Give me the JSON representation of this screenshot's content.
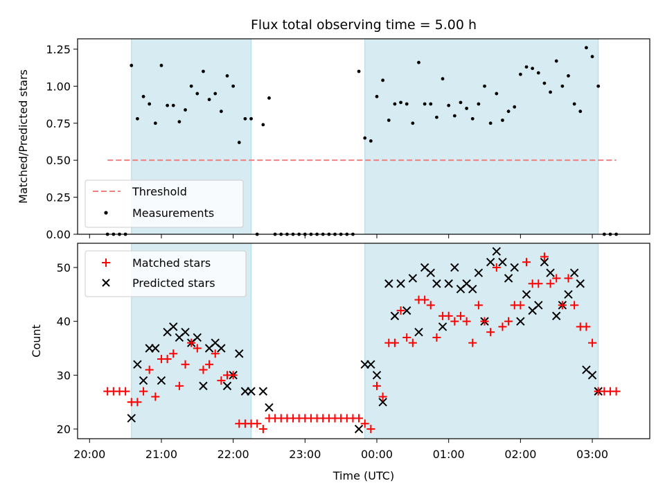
{
  "chart_data": [
    {
      "type": "scatter",
      "title": "Flux total observing time = 5.00 h",
      "ylabel": "Matched/Predicted stars",
      "xlabel": "",
      "ylim": [
        0,
        1.32
      ],
      "yticks": [
        "0.00",
        "0.25",
        "0.50",
        "0.75",
        "1.00",
        "1.25"
      ],
      "ytick_values": [
        0,
        0.25,
        0.5,
        0.75,
        1.0,
        1.25
      ],
      "threshold": {
        "name": "Threshold",
        "value": 0.5,
        "x_start": "20:15",
        "x_end": "03:20",
        "color": "#f08080"
      },
      "legend": {
        "placement": "lower-left",
        "entries": [
          "Threshold",
          "Measurements"
        ]
      },
      "series": [
        {
          "name": "Measurements",
          "color": "#000000",
          "x": [
            "20:15",
            "20:20",
            "20:25",
            "20:30",
            "20:35",
            "20:40",
            "20:45",
            "20:50",
            "20:55",
            "21:00",
            "21:05",
            "21:10",
            "21:15",
            "21:20",
            "21:25",
            "21:30",
            "21:35",
            "21:40",
            "21:45",
            "21:50",
            "21:55",
            "22:00",
            "22:05",
            "22:10",
            "22:15",
            "22:20",
            "22:25",
            "22:30",
            "22:35",
            "22:40",
            "22:45",
            "22:50",
            "22:55",
            "23:00",
            "23:05",
            "23:10",
            "23:15",
            "23:20",
            "23:25",
            "23:30",
            "23:35",
            "23:40",
            "23:45",
            "23:50",
            "23:55",
            "00:00",
            "00:05",
            "00:10",
            "00:15",
            "00:20",
            "00:25",
            "00:30",
            "00:35",
            "00:40",
            "00:45",
            "00:50",
            "00:55",
            "01:00",
            "01:05",
            "01:10",
            "01:15",
            "01:20",
            "01:25",
            "01:30",
            "01:35",
            "01:40",
            "01:45",
            "01:50",
            "01:55",
            "02:00",
            "02:05",
            "02:10",
            "02:15",
            "02:20",
            "02:25",
            "02:30",
            "02:35",
            "02:40",
            "02:45",
            "02:50",
            "02:55",
            "03:00",
            "03:05",
            "03:10",
            "03:15",
            "03:20"
          ],
          "y": [
            0,
            0,
            0,
            0,
            1.14,
            0.78,
            0.93,
            0.88,
            0.75,
            1.14,
            0.87,
            0.87,
            0.76,
            0.84,
            1.0,
            0.95,
            1.1,
            0.91,
            0.95,
            0.83,
            1.07,
            1.0,
            0.62,
            0.78,
            0.78,
            0,
            0.74,
            0.92,
            0,
            0,
            0,
            0,
            0,
            0,
            0,
            0,
            0,
            0,
            0,
            0,
            0,
            0,
            1.1,
            0.65,
            0.63,
            0.93,
            1.04,
            0.77,
            0.88,
            0.89,
            0.88,
            0.75,
            1.16,
            0.88,
            0.88,
            0.79,
            1.05,
            0.87,
            0.8,
            0.89,
            0.85,
            0.78,
            0.88,
            1.0,
            0.75,
            0.95,
            0.77,
            0.83,
            0.86,
            1.08,
            1.13,
            1.12,
            1.09,
            1.02,
            0.96,
            1.17,
            1.0,
            1.07,
            0.88,
            0.83,
            1.26,
            1.2,
            1.0,
            0,
            0,
            0
          ]
        }
      ]
    },
    {
      "type": "scatter",
      "title": "",
      "ylabel": "Count",
      "xlabel": "Time (UTC)",
      "ylim": [
        18.2,
        54.5
      ],
      "yticks": [
        "20",
        "30",
        "40",
        "50"
      ],
      "ytick_values": [
        20,
        30,
        40,
        50
      ],
      "xticks": [
        "20:00",
        "21:00",
        "22:00",
        "23:00",
        "00:00",
        "01:00",
        "02:00",
        "03:00"
      ],
      "legend": {
        "placement": "top-left",
        "entries": [
          "Matched stars",
          "Predicted stars"
        ]
      },
      "series": [
        {
          "name": "Matched stars",
          "color": "#ff0000",
          "marker": "+",
          "x": [
            "20:15",
            "20:20",
            "20:25",
            "20:30",
            "20:35",
            "20:40",
            "20:45",
            "20:50",
            "20:55",
            "21:00",
            "21:05",
            "21:10",
            "21:15",
            "21:20",
            "21:25",
            "21:30",
            "21:35",
            "21:40",
            "21:45",
            "21:50",
            "21:55",
            "22:00",
            "22:05",
            "22:10",
            "22:15",
            "22:20",
            "22:25",
            "22:30",
            "22:35",
            "22:40",
            "22:45",
            "22:50",
            "22:55",
            "23:00",
            "23:05",
            "23:10",
            "23:15",
            "23:20",
            "23:25",
            "23:30",
            "23:35",
            "23:40",
            "23:45",
            "23:50",
            "23:55",
            "00:00",
            "00:05",
            "00:10",
            "00:15",
            "00:20",
            "00:25",
            "00:30",
            "00:35",
            "00:40",
            "00:45",
            "00:50",
            "00:55",
            "01:00",
            "01:05",
            "01:10",
            "01:15",
            "01:20",
            "01:25",
            "01:30",
            "01:35",
            "01:40",
            "01:45",
            "01:50",
            "01:55",
            "02:00",
            "02:05",
            "02:10",
            "02:15",
            "02:20",
            "02:25",
            "02:30",
            "02:35",
            "02:40",
            "02:45",
            "02:50",
            "02:55",
            "03:00",
            "03:05",
            "03:10",
            "03:15",
            "03:20"
          ],
          "y": [
            27,
            27,
            27,
            27,
            25,
            25,
            27,
            31,
            26,
            33,
            33,
            34,
            28,
            32,
            36,
            35,
            31,
            32,
            34,
            29,
            30,
            30,
            21,
            21,
            21,
            21,
            20,
            22,
            22,
            22,
            22,
            22,
            22,
            22,
            22,
            22,
            22,
            22,
            22,
            22,
            22,
            22,
            22,
            21,
            20,
            28,
            26,
            36,
            36,
            42,
            37,
            36,
            44,
            44,
            43,
            37,
            41,
            41,
            40,
            41,
            40,
            36,
            43,
            40,
            38,
            50,
            39,
            40,
            43,
            43,
            51,
            47,
            47,
            52,
            47,
            48,
            43,
            48,
            43,
            39,
            39,
            36,
            27,
            27,
            27,
            27
          ]
        },
        {
          "name": "Predicted stars",
          "color": "#000000",
          "marker": "x",
          "x": [
            "20:35",
            "20:40",
            "20:45",
            "20:50",
            "20:55",
            "21:00",
            "21:05",
            "21:10",
            "21:15",
            "21:20",
            "21:25",
            "21:30",
            "21:35",
            "21:40",
            "21:45",
            "21:50",
            "21:55",
            "22:00",
            "22:05",
            "22:10",
            "22:15",
            "22:25",
            "22:30",
            "23:45",
            "23:50",
            "23:55",
            "00:00",
            "00:05",
            "00:10",
            "00:15",
            "00:20",
            "00:25",
            "00:30",
            "00:35",
            "00:40",
            "00:45",
            "00:50",
            "00:55",
            "01:00",
            "01:05",
            "01:10",
            "01:15",
            "01:20",
            "01:25",
            "01:30",
            "01:35",
            "01:40",
            "01:45",
            "01:50",
            "01:55",
            "02:00",
            "02:05",
            "02:10",
            "02:15",
            "02:20",
            "02:25",
            "02:30",
            "02:35",
            "02:40",
            "02:45",
            "02:50",
            "02:55",
            "03:00",
            "03:05"
          ],
          "y": [
            22,
            32,
            29,
            35,
            35,
            29,
            38,
            39,
            37,
            38,
            36,
            37,
            28,
            35,
            36,
            35,
            28,
            30,
            34,
            27,
            27,
            27,
            24,
            20,
            32,
            32,
            30,
            25,
            47,
            41,
            47,
            42,
            48,
            38,
            50,
            49,
            47,
            39,
            47,
            50,
            46,
            47,
            46,
            49,
            40,
            51,
            53,
            51,
            48,
            50,
            40,
            45,
            42,
            43,
            51,
            49,
            41,
            43,
            45,
            49,
            47,
            31,
            30,
            27
          ]
        }
      ],
      "shaded_intervals": [
        [
          "20:35",
          "22:15"
        ],
        [
          "23:50",
          "03:05"
        ]
      ]
    }
  ]
}
